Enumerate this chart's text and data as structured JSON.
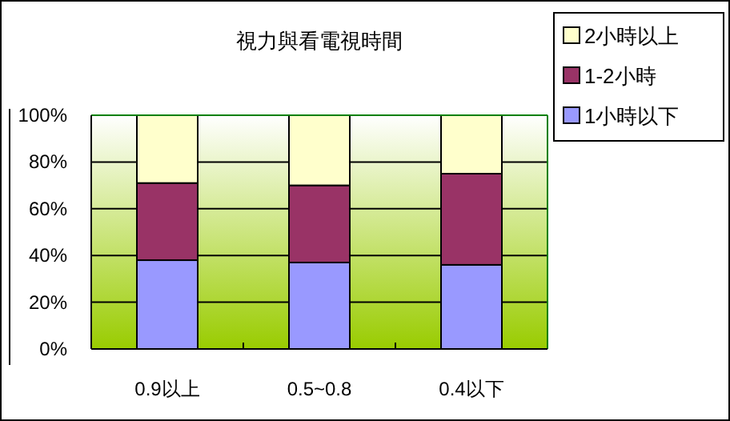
{
  "chart_data": {
    "type": "bar",
    "title": "視力與看電視時間",
    "stacked": true,
    "categories": [
      "0.9以上",
      "0.5~0.8",
      "0.4以下"
    ],
    "series": [
      {
        "name": "1小時以下",
        "color": "#9999ff",
        "values": [
          38,
          37,
          36
        ]
      },
      {
        "name": "1-2小時",
        "color": "#993366",
        "values": [
          33,
          33,
          39
        ]
      },
      {
        "name": "2小時以上",
        "color": "#ffffcc",
        "values": [
          29,
          30,
          25
        ]
      }
    ],
    "ylim": [
      0,
      100
    ],
    "yticks": [
      {
        "value": 0,
        "label": "0%"
      },
      {
        "value": 20,
        "label": "20%"
      },
      {
        "value": 40,
        "label": "40%"
      },
      {
        "value": 60,
        "label": "60%"
      },
      {
        "value": 80,
        "label": "80%"
      },
      {
        "value": 100,
        "label": "100%"
      }
    ],
    "grid": "y",
    "legend": "top right"
  }
}
